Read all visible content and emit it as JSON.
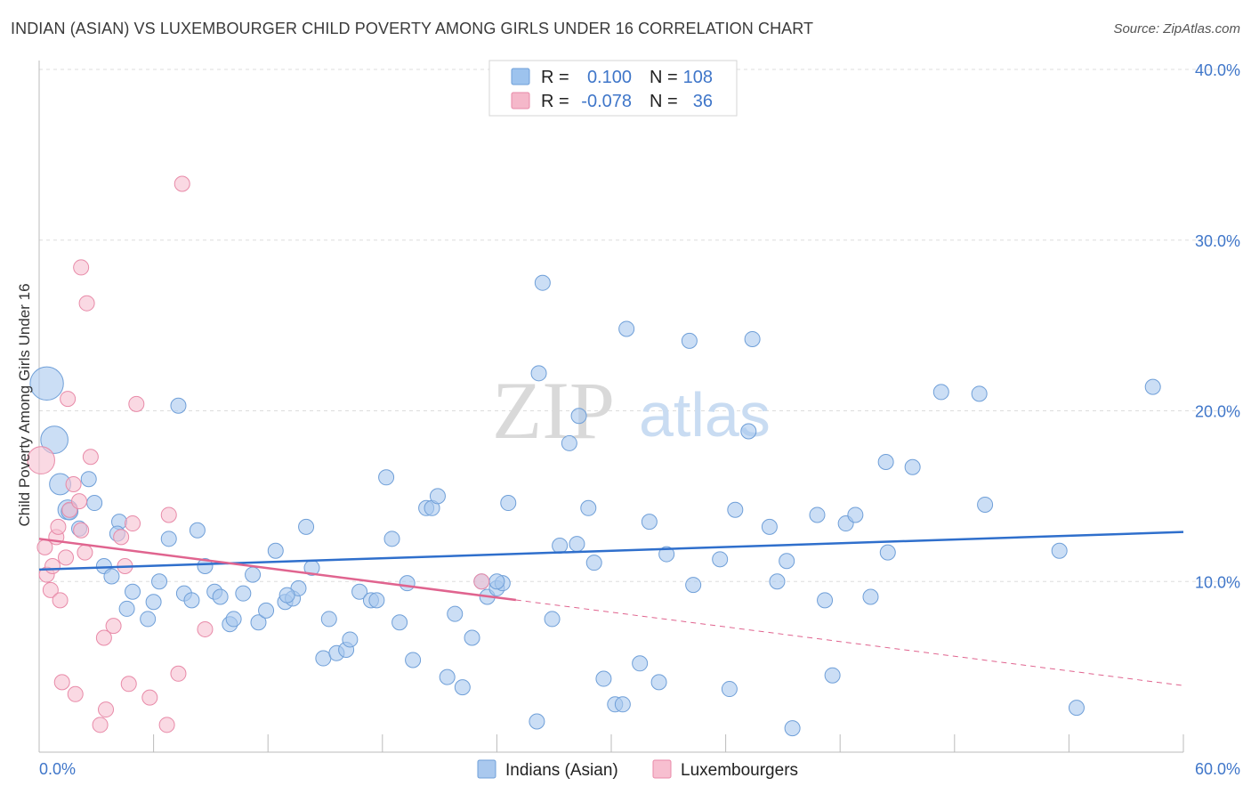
{
  "header": {
    "title": "INDIAN (ASIAN) VS LUXEMBOURGER CHILD POVERTY AMONG GIRLS UNDER 16 CORRELATION CHART",
    "source": "Source: ZipAtlas.com"
  },
  "watermark": {
    "zip": "ZIP",
    "atlas": "atlas"
  },
  "legend": {
    "r_label": "R =",
    "n_label": "N =",
    "rows": [
      {
        "r": "0.100",
        "n": "108",
        "color": "#9dc3ee"
      },
      {
        "r": "-0.078",
        "n": "36",
        "color": "#f5b8ca"
      }
    ]
  },
  "colors": {
    "blue_fill": "#a9c8ee",
    "blue_stroke": "#6f9fd8",
    "blue_line": "#2f6fcc",
    "pink_fill": "#f7bfd0",
    "pink_stroke": "#e88aa8",
    "pink_line": "#e0648f",
    "grid": "#dddddd",
    "axis_text": "#3f76c9"
  },
  "chart_data": {
    "type": "scatter",
    "title": "INDIAN (ASIAN) VS LUXEMBOURGER CHILD POVERTY AMONG GIRLS UNDER 16 CORRELATION CHART",
    "xlabel": "",
    "ylabel": "Child Poverty Among Girls Under 16",
    "xlim": [
      0,
      60
    ],
    "ylim": [
      0,
      40
    ],
    "x_tick_labels": [
      "0.0%",
      "60.0%"
    ],
    "y_ticks": [
      10,
      20,
      30,
      40
    ],
    "y_tick_labels": [
      "10.0%",
      "20.0%",
      "30.0%",
      "40.0%"
    ],
    "grid": true,
    "legend_position": "top-center",
    "series": [
      {
        "name": "Indians (Asian)",
        "color": "#a9c8ee",
        "trend": {
          "x": [
            0,
            60
          ],
          "y": [
            10.7,
            12.9
          ],
          "dashed_after": null
        },
        "points": [
          [
            0.4,
            21.6,
            2.2
          ],
          [
            0.8,
            18.3,
            1.8
          ],
          [
            1.1,
            15.7,
            1.4
          ],
          [
            1.5,
            14.2,
            1.3
          ],
          [
            1.6,
            14.1,
            1.1
          ],
          [
            2.1,
            13.1,
            1.0
          ],
          [
            2.6,
            16.0,
            1.0
          ],
          [
            2.9,
            14.6,
            1.0
          ],
          [
            3.4,
            10.9,
            1.0
          ],
          [
            3.8,
            10.3,
            1.0
          ],
          [
            4.2,
            13.5,
            1.0
          ],
          [
            4.1,
            12.8,
            1.0
          ],
          [
            4.6,
            8.4,
            1.0
          ],
          [
            4.9,
            9.4,
            1.0
          ],
          [
            5.7,
            7.8,
            1.0
          ],
          [
            6.0,
            8.8,
            1.0
          ],
          [
            6.3,
            10.0,
            1.0
          ],
          [
            6.8,
            12.5,
            1.0
          ],
          [
            7.3,
            20.3,
            1.0
          ],
          [
            7.6,
            9.3,
            1.0
          ],
          [
            8.0,
            8.9,
            1.0
          ],
          [
            8.3,
            13.0,
            1.0
          ],
          [
            8.7,
            10.9,
            1.0
          ],
          [
            9.2,
            9.4,
            1.0
          ],
          [
            9.5,
            9.1,
            1.0
          ],
          [
            10.0,
            7.5,
            1.0
          ],
          [
            10.2,
            7.8,
            1.0
          ],
          [
            10.7,
            9.3,
            1.0
          ],
          [
            11.2,
            10.4,
            1.0
          ],
          [
            11.5,
            7.6,
            1.0
          ],
          [
            11.9,
            8.3,
            1.0
          ],
          [
            12.4,
            11.8,
            1.0
          ],
          [
            12.9,
            8.8,
            1.0
          ],
          [
            13.3,
            9.0,
            1.0
          ],
          [
            13.6,
            9.6,
            1.0
          ],
          [
            14.0,
            13.2,
            1.0
          ],
          [
            14.3,
            10.8,
            1.0
          ],
          [
            14.9,
            5.5,
            1.0
          ],
          [
            15.2,
            7.8,
            1.0
          ],
          [
            15.6,
            5.8,
            1.0
          ],
          [
            16.1,
            6.0,
            1.0
          ],
          [
            16.3,
            6.6,
            1.0
          ],
          [
            16.8,
            9.4,
            1.0
          ],
          [
            17.4,
            8.9,
            1.0
          ],
          [
            17.7,
            8.9,
            1.0
          ],
          [
            18.2,
            16.1,
            1.0
          ],
          [
            18.5,
            12.5,
            1.0
          ],
          [
            18.9,
            7.6,
            1.0
          ],
          [
            19.3,
            9.9,
            1.0
          ],
          [
            19.6,
            5.4,
            1.0
          ],
          [
            20.3,
            14.3,
            1.0
          ],
          [
            20.6,
            14.3,
            1.0
          ],
          [
            20.9,
            15.0,
            1.0
          ],
          [
            21.4,
            4.4,
            1.0
          ],
          [
            21.8,
            8.1,
            1.0
          ],
          [
            22.2,
            3.8,
            1.0
          ],
          [
            22.7,
            6.7,
            1.0
          ],
          [
            23.2,
            10.0,
            1.0
          ],
          [
            23.5,
            9.1,
            1.0
          ],
          [
            24.0,
            9.6,
            1.0
          ],
          [
            24.3,
            9.9,
            1.0
          ],
          [
            24.6,
            14.6,
            1.0
          ],
          [
            26.1,
            1.8,
            1.0
          ],
          [
            26.4,
            27.5,
            1.0
          ],
          [
            26.2,
            22.2,
            1.0
          ],
          [
            26.9,
            7.8,
            1.0
          ],
          [
            27.3,
            12.1,
            1.0
          ],
          [
            27.8,
            18.1,
            1.0
          ],
          [
            28.3,
            19.7,
            1.0
          ],
          [
            28.2,
            12.2,
            1.0
          ],
          [
            28.8,
            14.3,
            1.0
          ],
          [
            29.1,
            11.1,
            1.0
          ],
          [
            29.6,
            4.3,
            1.0
          ],
          [
            30.2,
            2.8,
            1.0
          ],
          [
            30.6,
            2.8,
            1.0
          ],
          [
            30.8,
            24.8,
            1.0
          ],
          [
            31.5,
            5.2,
            1.0
          ],
          [
            32.0,
            13.5,
            1.0
          ],
          [
            32.5,
            4.1,
            1.0
          ],
          [
            32.9,
            11.6,
            1.0
          ],
          [
            34.1,
            24.1,
            1.0
          ],
          [
            34.3,
            9.8,
            1.0
          ],
          [
            35.7,
            11.3,
            1.0
          ],
          [
            36.2,
            3.7,
            1.0
          ],
          [
            36.5,
            14.2,
            1.0
          ],
          [
            37.4,
            24.2,
            1.0
          ],
          [
            37.2,
            18.8,
            1.0
          ],
          [
            38.3,
            13.2,
            1.0
          ],
          [
            38.7,
            10.0,
            1.0
          ],
          [
            39.2,
            11.2,
            1.0
          ],
          [
            39.5,
            1.4,
            1.0
          ],
          [
            40.8,
            13.9,
            1.0
          ],
          [
            41.2,
            8.9,
            1.0
          ],
          [
            41.6,
            4.5,
            1.0
          ],
          [
            42.3,
            13.4,
            1.0
          ],
          [
            42.8,
            13.9,
            1.0
          ],
          [
            43.6,
            9.1,
            1.0
          ],
          [
            44.4,
            17.0,
            1.0
          ],
          [
            44.5,
            11.7,
            1.0
          ],
          [
            45.8,
            16.7,
            1.0
          ],
          [
            47.3,
            21.1,
            1.0
          ],
          [
            49.3,
            21.0,
            1.0
          ],
          [
            49.6,
            14.5,
            1.0
          ],
          [
            53.5,
            11.8,
            1.0
          ],
          [
            54.4,
            2.6,
            1.0
          ],
          [
            58.4,
            21.4,
            1.0
          ],
          [
            24.0,
            10.0,
            1.0
          ],
          [
            13.0,
            9.2,
            1.0
          ]
        ]
      },
      {
        "name": "Luxembourgers",
        "color": "#f7bfd0",
        "trend": {
          "x": [
            0,
            60
          ],
          "y": [
            12.5,
            3.9
          ],
          "dashed_after": 25
        },
        "points": [
          [
            0.1,
            17.1,
            1.8
          ],
          [
            0.3,
            12.0,
            1.0
          ],
          [
            0.4,
            10.4,
            1.0
          ],
          [
            0.6,
            9.5,
            1.0
          ],
          [
            0.7,
            10.9,
            1.0
          ],
          [
            0.9,
            12.6,
            1.0
          ],
          [
            1.0,
            13.2,
            1.0
          ],
          [
            1.1,
            8.9,
            1.0
          ],
          [
            1.2,
            4.1,
            1.0
          ],
          [
            1.4,
            11.4,
            1.0
          ],
          [
            1.5,
            20.7,
            1.0
          ],
          [
            1.6,
            14.2,
            1.0
          ],
          [
            1.8,
            15.7,
            1.0
          ],
          [
            1.9,
            3.4,
            1.0
          ],
          [
            2.1,
            14.7,
            1.0
          ],
          [
            2.2,
            13.0,
            1.0
          ],
          [
            2.2,
            28.4,
            1.0
          ],
          [
            2.4,
            11.7,
            1.0
          ],
          [
            2.5,
            26.3,
            1.0
          ],
          [
            2.7,
            17.3,
            1.0
          ],
          [
            3.2,
            1.6,
            1.0
          ],
          [
            3.4,
            6.7,
            1.0
          ],
          [
            3.5,
            2.5,
            1.0
          ],
          [
            3.9,
            7.4,
            1.0
          ],
          [
            4.3,
            12.6,
            1.0
          ],
          [
            4.5,
            10.9,
            1.0
          ],
          [
            4.7,
            4.0,
            1.0
          ],
          [
            4.9,
            13.4,
            1.0
          ],
          [
            5.1,
            20.4,
            1.0
          ],
          [
            5.8,
            3.2,
            1.0
          ],
          [
            6.7,
            1.6,
            1.0
          ],
          [
            6.8,
            13.9,
            1.0
          ],
          [
            7.3,
            4.6,
            1.0
          ],
          [
            7.5,
            33.3,
            1.0
          ],
          [
            8.7,
            7.2,
            1.0
          ],
          [
            23.2,
            10.0,
            1.0
          ]
        ]
      }
    ]
  },
  "bottom_legend": [
    {
      "label": "Indians (Asian)",
      "color": "#a9c8ee"
    },
    {
      "label": "Luxembourgers",
      "color": "#f7bfd0"
    }
  ]
}
